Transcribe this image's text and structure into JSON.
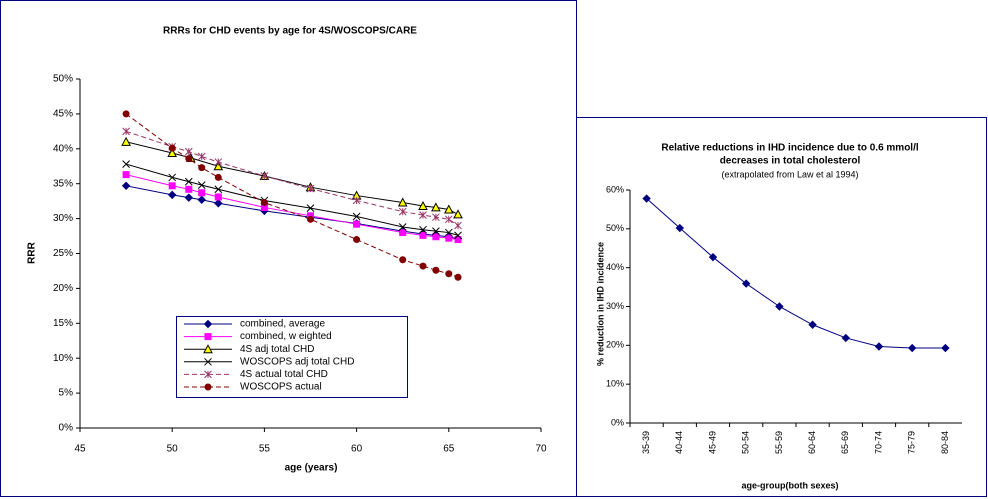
{
  "chart_data": [
    {
      "type": "line",
      "title": "RRRs for CHD events by age for 4S/WOSCOPS/CARE",
      "x_label": "age (years)",
      "y_label": "RRR",
      "xlim": [
        45,
        70
      ],
      "xticks": [
        45,
        50,
        55,
        60,
        65,
        70
      ],
      "ylim": [
        0,
        50
      ],
      "yticks": [
        {
          "value": 0,
          "label": "0%"
        },
        {
          "value": 5,
          "label": "5%"
        },
        {
          "value": 10,
          "label": "10%"
        },
        {
          "value": 15,
          "label": "15%"
        },
        {
          "value": 20,
          "label": "20%"
        },
        {
          "value": 25,
          "label": "25%"
        },
        {
          "value": 30,
          "label": "30%"
        },
        {
          "value": 35,
          "label": "35%"
        },
        {
          "value": 40,
          "label": "40%"
        },
        {
          "value": 45,
          "label": "45%"
        },
        {
          "value": 50,
          "label": "50%"
        }
      ],
      "series": [
        {
          "name": "combined, average",
          "color": "#000080",
          "marker": "diamond",
          "dashed": false,
          "x": [
            47.5,
            50,
            50.9,
            51.6,
            52.5,
            55,
            57.5,
            60,
            62.5,
            63.6,
            64.3,
            65,
            65.5
          ],
          "values": [
            34.7,
            33.4,
            33.0,
            32.7,
            32.2,
            31.1,
            30.2,
            29.3,
            28.2,
            27.8,
            27.6,
            27.4,
            27.1
          ]
        },
        {
          "name": "combined, w eighted",
          "color": "#ff00ff",
          "marker": "square",
          "dashed": false,
          "x": [
            47.5,
            50,
            50.9,
            51.6,
            52.5,
            55,
            57.5,
            60,
            62.5,
            63.6,
            64.3,
            65,
            65.5
          ],
          "values": [
            36.3,
            34.7,
            34.2,
            33.7,
            33.1,
            31.6,
            30.4,
            29.2,
            28.0,
            27.6,
            27.4,
            27.2,
            27.0
          ]
        },
        {
          "name": "4S adj total CHD",
          "color": "#000000",
          "marker": "triangle",
          "dashed": false,
          "x": [
            47.5,
            50,
            51,
            52.5,
            55,
            57.5,
            60,
            62.5,
            63.6,
            64.3,
            65,
            65.5
          ],
          "values": [
            41.0,
            39.4,
            38.7,
            37.5,
            36.1,
            34.5,
            33.3,
            32.3,
            31.8,
            31.6,
            31.3,
            30.6
          ]
        },
        {
          "name": "WOSCOPS adj total CHD",
          "color": "#000000",
          "marker": "x",
          "dashed": false,
          "x": [
            47.5,
            50,
            50.9,
            51.6,
            52.5,
            55,
            57.5,
            60,
            62.5,
            63.6,
            64.3,
            65,
            65.5
          ],
          "values": [
            37.8,
            35.9,
            35.3,
            34.8,
            34.2,
            32.6,
            31.5,
            30.3,
            28.8,
            28.4,
            28.2,
            28.0,
            27.6
          ]
        },
        {
          "name": "4S actual total CHD",
          "color": "#993366",
          "marker": "asterisk",
          "dashed": true,
          "x": [
            47.5,
            50,
            50.9,
            51.6,
            52.5,
            55,
            57.5,
            60,
            62.5,
            63.6,
            64.3,
            65,
            65.5
          ],
          "values": [
            42.5,
            40.3,
            39.6,
            38.9,
            38.1,
            36.1,
            34.3,
            32.6,
            31.0,
            30.5,
            30.2,
            29.9,
            29.0
          ]
        },
        {
          "name": "WOSCOPS actual",
          "color": "#800000",
          "marker": "circle",
          "dashed": true,
          "x": [
            47.5,
            50,
            50.9,
            51.6,
            52.5,
            55,
            57.5,
            60,
            62.5,
            63.6,
            64.3,
            65,
            65.5
          ],
          "values": [
            45.0,
            40.1,
            38.6,
            37.3,
            35.9,
            32.3,
            29.9,
            27.0,
            24.1,
            23.2,
            22.6,
            22.1,
            21.6
          ]
        }
      ]
    },
    {
      "type": "line",
      "title": [
        "Relative reductions in IHD incidence due to 0.6 mmol/l",
        "decreases in total cholesterol"
      ],
      "subtitle": "(extrapolated from Law et al 1994)",
      "x_label": "age-group(both sexes)",
      "y_label": "% reduction in IHD incidence",
      "categories": [
        "35-39",
        "40-44",
        "45-49",
        "50-54",
        "55-59",
        "60-64",
        "65-69",
        "70-74",
        "75-79",
        "80-84"
      ],
      "series": [
        {
          "color": "#000080",
          "marker": "diamond",
          "dashed": false,
          "values": [
            57.8,
            50.2,
            42.7,
            35.9,
            30.0,
            25.3,
            21.9,
            19.7,
            19.3,
            19.3
          ]
        }
      ],
      "ylim": [
        0,
        60
      ],
      "yticks": [
        {
          "value": 0,
          "label": "0%"
        },
        {
          "value": 10,
          "label": "10%"
        },
        {
          "value": 20,
          "label": "20%"
        },
        {
          "value": 30,
          "label": "30%"
        },
        {
          "value": 40,
          "label": "40%"
        },
        {
          "value": 50,
          "label": "50%"
        },
        {
          "value": 60,
          "label": "60%"
        }
      ]
    }
  ]
}
